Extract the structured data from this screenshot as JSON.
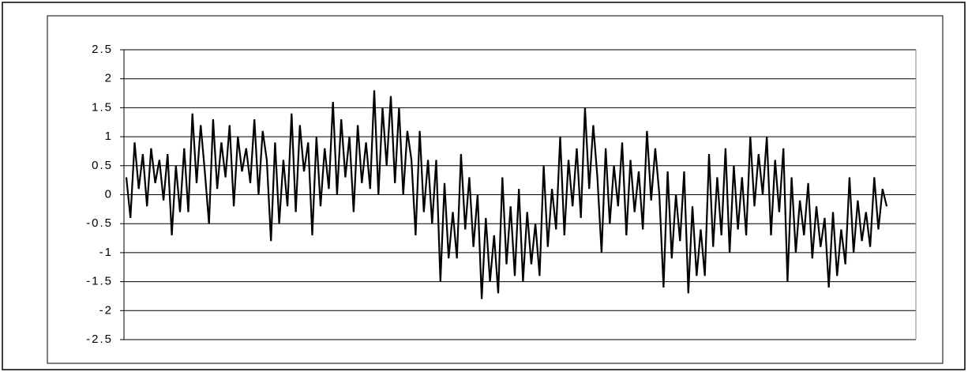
{
  "chart_data": {
    "type": "line",
    "color": "#000000",
    "grid": true,
    "ylim": [
      -2.5,
      2.5
    ],
    "yticks": [
      -2.5,
      -2,
      -1.5,
      -1,
      -0.5,
      0,
      0.5,
      1,
      1.5,
      2,
      2.5
    ],
    "values": [
      0.3,
      -0.4,
      0.9,
      0.1,
      0.7,
      -0.2,
      0.8,
      0.2,
      0.6,
      -0.1,
      0.7,
      -0.7,
      0.5,
      -0.3,
      0.8,
      -0.3,
      1.4,
      0.2,
      1.2,
      0.4,
      -0.5,
      1.3,
      0.1,
      0.9,
      0.3,
      1.2,
      -0.2,
      1.0,
      0.4,
      0.8,
      0.2,
      1.3,
      0.0,
      1.1,
      0.6,
      -0.8,
      0.9,
      -0.5,
      0.6,
      -0.2,
      1.4,
      -0.3,
      1.2,
      0.4,
      0.9,
      -0.7,
      1.0,
      -0.2,
      0.8,
      0.1,
      1.6,
      0.0,
      1.3,
      0.3,
      1.0,
      -0.3,
      1.2,
      0.2,
      0.9,
      0.1,
      1.8,
      0.0,
      1.5,
      0.5,
      1.7,
      0.2,
      1.5,
      0.0,
      1.1,
      0.6,
      -0.7,
      1.1,
      -0.3,
      0.6,
      -0.5,
      0.6,
      -1.5,
      0.2,
      -1.1,
      -0.3,
      -1.1,
      0.7,
      -0.6,
      0.3,
      -0.9,
      0.0,
      -1.8,
      -0.4,
      -1.5,
      -0.7,
      -1.7,
      0.3,
      -1.2,
      -0.2,
      -1.4,
      0.1,
      -1.5,
      -0.3,
      -1.2,
      -0.5,
      -1.4,
      0.5,
      -0.9,
      0.1,
      -0.6,
      1.0,
      -0.7,
      0.6,
      -0.2,
      0.8,
      -0.4,
      1.5,
      0.1,
      1.2,
      0.3,
      -1.0,
      0.8,
      -0.5,
      0.5,
      -0.2,
      0.9,
      -0.7,
      0.6,
      -0.3,
      0.4,
      -0.6,
      1.1,
      -0.1,
      0.8,
      0.0,
      -1.6,
      0.4,
      -1.1,
      0.0,
      -0.8,
      0.4,
      -1.7,
      -0.2,
      -1.4,
      -0.6,
      -1.4,
      0.7,
      -0.9,
      0.3,
      -0.7,
      0.8,
      -1.0,
      0.5,
      -0.6,
      0.3,
      -0.7,
      1.0,
      -0.2,
      0.7,
      0.0,
      1.0,
      -0.7,
      0.6,
      -0.3,
      0.8,
      -1.5,
      0.3,
      -1.0,
      -0.1,
      -0.7,
      0.2,
      -1.1,
      -0.2,
      -0.9,
      -0.4,
      -1.6,
      -0.3,
      -1.4,
      -0.6,
      -1.2,
      0.3,
      -1.0,
      -0.1,
      -0.8,
      -0.3,
      -0.9,
      0.3,
      -0.6,
      0.1,
      -0.2
    ]
  }
}
